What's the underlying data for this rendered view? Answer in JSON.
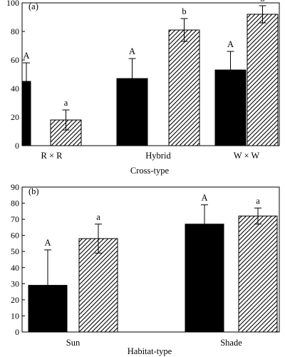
{
  "chart_data": [
    {
      "type": "bar",
      "panel_label": "(a)",
      "xlabel": "Cross-type",
      "ylabel": "",
      "ylim": [
        0,
        100
      ],
      "yticks": [
        0,
        20,
        40,
        60,
        80,
        100
      ],
      "categories": [
        "R × R",
        "Hybrid",
        "W × W"
      ],
      "series": [
        {
          "fill": "solid",
          "color": "#000000",
          "values": [
            45,
            47,
            53
          ],
          "errors": [
            13,
            14,
            13
          ],
          "labels": [
            "A",
            "A",
            "A"
          ]
        },
        {
          "fill": "hatched",
          "color": "#000000",
          "values": [
            18,
            81,
            92
          ],
          "errors": [
            7,
            8,
            6
          ],
          "labels": [
            "a",
            "b",
            "b"
          ]
        }
      ]
    },
    {
      "type": "bar",
      "panel_label": "(b)",
      "xlabel": "Habitat-type",
      "ylabel": "",
      "ylim": [
        0,
        90
      ],
      "yticks": [
        0,
        10,
        20,
        30,
        40,
        50,
        60,
        70,
        80,
        90
      ],
      "categories": [
        "Sun",
        "Shade"
      ],
      "series": [
        {
          "fill": "solid",
          "color": "#000000",
          "values": [
            29,
            67
          ],
          "errors": [
            22,
            12
          ],
          "labels": [
            "A",
            "A"
          ]
        },
        {
          "fill": "hatched",
          "color": "#000000",
          "values": [
            58,
            72
          ],
          "errors": [
            9,
            5
          ],
          "labels": [
            "a",
            "a"
          ]
        }
      ]
    }
  ]
}
